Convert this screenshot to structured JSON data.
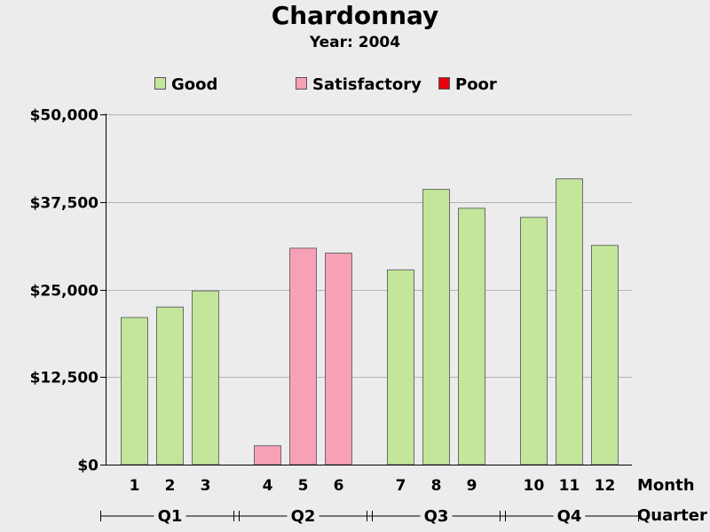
{
  "chart_data": {
    "type": "bar",
    "title": "Chardonnay",
    "subtitle": "Year: 2004",
    "xlabel": "Month",
    "group_label": "Quarter",
    "ylim": [
      0,
      50000
    ],
    "y_ticks": [
      {
        "value": 0,
        "label": "$0"
      },
      {
        "value": 12500,
        "label": "$12,500"
      },
      {
        "value": 25000,
        "label": "$25,000"
      },
      {
        "value": 37500,
        "label": "$37,500"
      },
      {
        "value": 50000,
        "label": "$50,000"
      }
    ],
    "grid": true,
    "legend_position": "top",
    "legend": [
      {
        "name": "Good",
        "color": "#c3e69b"
      },
      {
        "name": "Satisfactory",
        "color": "#f7a1b6"
      },
      {
        "name": "Poor",
        "color": "#e8000b"
      }
    ],
    "groups": [
      {
        "label": "Q1",
        "bars": [
          {
            "month": "1",
            "value": 21000,
            "rating": "Good"
          },
          {
            "month": "2",
            "value": 22500,
            "rating": "Good"
          },
          {
            "month": "3",
            "value": 24800,
            "rating": "Good"
          }
        ]
      },
      {
        "label": "Q2",
        "bars": [
          {
            "month": "4",
            "value": 2700,
            "rating": "Satisfactory"
          },
          {
            "month": "5",
            "value": 30900,
            "rating": "Satisfactory"
          },
          {
            "month": "6",
            "value": 30200,
            "rating": "Satisfactory"
          }
        ]
      },
      {
        "label": "Q3",
        "bars": [
          {
            "month": "7",
            "value": 27800,
            "rating": "Good"
          },
          {
            "month": "8",
            "value": 39300,
            "rating": "Good"
          },
          {
            "month": "9",
            "value": 36600,
            "rating": "Good"
          }
        ]
      },
      {
        "label": "Q4",
        "bars": [
          {
            "month": "10",
            "value": 35300,
            "rating": "Good"
          },
          {
            "month": "11",
            "value": 40800,
            "rating": "Good"
          },
          {
            "month": "12",
            "value": 31300,
            "rating": "Good"
          }
        ]
      }
    ]
  }
}
